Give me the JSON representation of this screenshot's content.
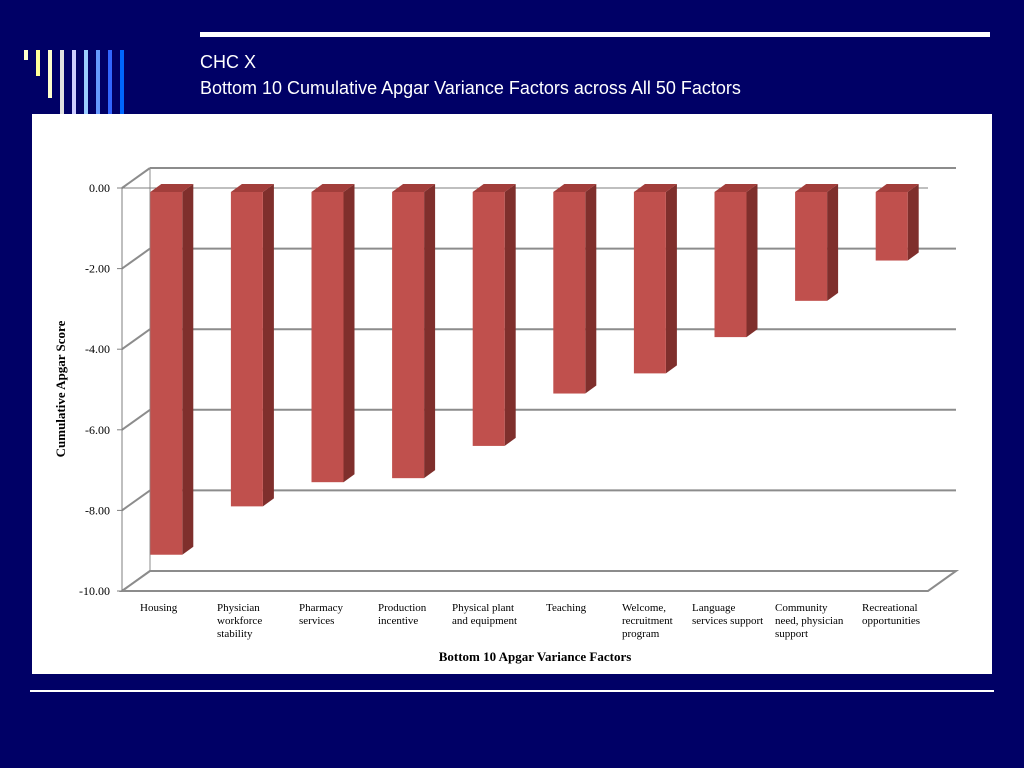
{
  "slide": {
    "title": "CHC X",
    "subtitle": "Bottom 10 Cumulative Apgar Variance Factors across All 50 Factors",
    "accent_colors": {
      "background": "#000066",
      "stripes": [
        "#ffffcc",
        "#ffff99",
        "#ffffcc",
        "#e0e0e0",
        "#ccccff",
        "#99ccff",
        "#6699ff",
        "#3366ff",
        "#0066ff"
      ]
    }
  },
  "chart_data": {
    "type": "bar",
    "style": "3d-column",
    "categories": [
      [
        "Housing"
      ],
      [
        "Physician",
        "workforce",
        "stability"
      ],
      [
        "Pharmacy",
        "services"
      ],
      [
        "Production",
        "incentive"
      ],
      [
        "Physical plant",
        "and equipment"
      ],
      [
        "Teaching"
      ],
      [
        "Welcome,",
        "recruitment",
        "program"
      ],
      [
        "Language",
        "services support"
      ],
      [
        "Community",
        "need, physician",
        "support"
      ],
      [
        "Recreational",
        "opportunities"
      ]
    ],
    "values": [
      -9.1,
      -7.9,
      -7.3,
      -7.2,
      -6.4,
      -5.1,
      -4.6,
      -3.7,
      -2.8,
      -1.8
    ],
    "xlabel": "Bottom 10 Apgar Variance Factors",
    "ylabel": "Cumulative Apgar Score",
    "ylim": [
      -10,
      0
    ],
    "yticks": [
      "0.00",
      "-2.00",
      "-4.00",
      "-6.00",
      "-8.00",
      "-10.00"
    ],
    "grid": true,
    "legend": "none",
    "bar_color": "#c0504d",
    "bar_side_color": "#7f2f2c",
    "bar_top_color": "#a23e3b"
  }
}
